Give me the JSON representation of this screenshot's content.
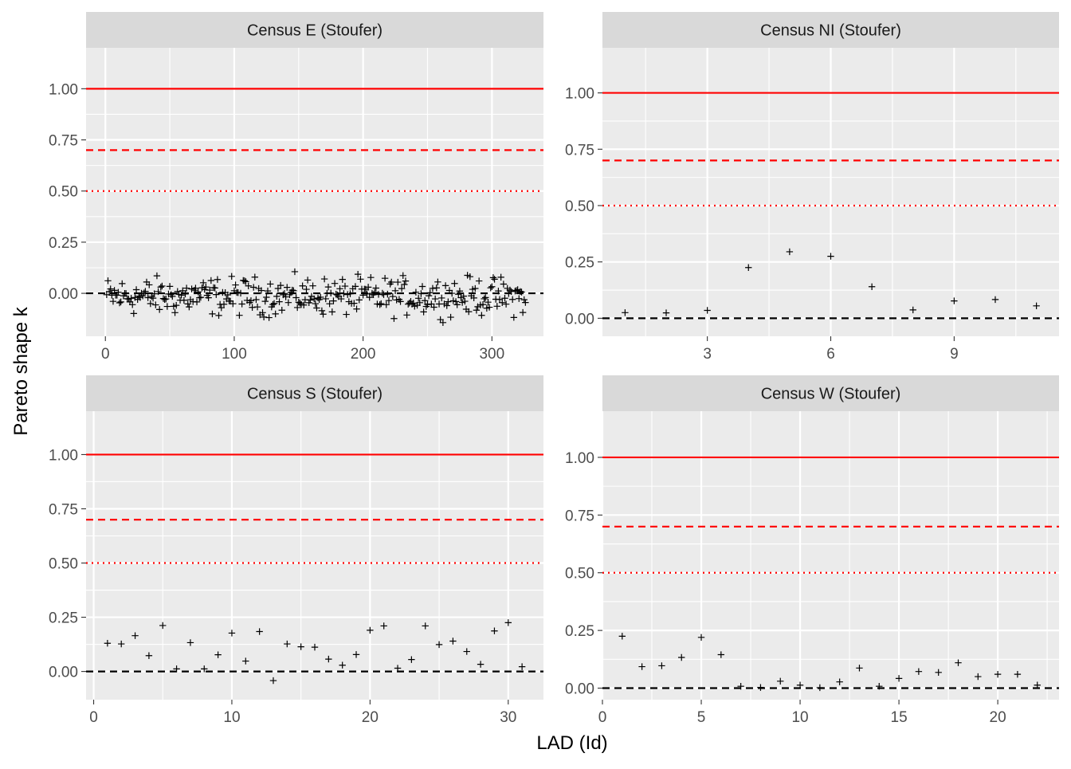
{
  "chart_data": {
    "type": "scatter",
    "xlabel": "LAD (Id)",
    "ylabel": "Pareto shape k",
    "marker": "+",
    "reference_lines": [
      {
        "y": 1.0,
        "color": "#ff0000",
        "style": "solid"
      },
      {
        "y": 0.7,
        "color": "#ff0000",
        "style": "dashed"
      },
      {
        "y": 0.5,
        "color": "#ff0000",
        "style": "dotted"
      },
      {
        "y": 0.0,
        "color": "#000000",
        "style": "dashed"
      }
    ],
    "colors": {
      "panel_background": "#ebebeb",
      "strip_background": "#d9d9d9",
      "grid": "#ffffff",
      "points": "#000000"
    },
    "panels": [
      {
        "title": "Census E (Stoufer)",
        "xlim": [
          -15,
          340
        ],
        "ylim": [
          -0.21,
          1.2
        ],
        "xticks": [
          0,
          100,
          200,
          300
        ],
        "yticks": [
          0.0,
          0.25,
          0.5,
          0.75,
          1.0
        ],
        "ytick_labels": [
          "0.00",
          "0.25",
          "0.50",
          "0.75",
          "1.00"
        ],
        "n_points": 326,
        "points_note": "random"
      },
      {
        "title": "Census NI (Stoufer)",
        "xlim": [
          0.45,
          11.55
        ],
        "ylim": [
          -0.08,
          1.2
        ],
        "xticks": [
          3,
          6,
          9
        ],
        "yticks": [
          0.0,
          0.25,
          0.5,
          0.75,
          1.0
        ],
        "ytick_labels": [
          "0.00",
          "0.25",
          "0.50",
          "0.75",
          "1.00"
        ],
        "x": [
          1,
          2,
          3,
          4,
          5,
          6,
          7,
          8,
          9,
          10,
          11
        ],
        "y": [
          0.025,
          0.024,
          0.035,
          0.225,
          0.295,
          0.275,
          0.14,
          0.037,
          0.077,
          0.083,
          0.055
        ]
      },
      {
        "title": "Census S (Stoufer)",
        "xlim": [
          -0.55,
          32.55
        ],
        "ylim": [
          -0.13,
          1.2
        ],
        "xticks": [
          0,
          10,
          20,
          30
        ],
        "yticks": [
          0.0,
          0.25,
          0.5,
          0.75,
          1.0
        ],
        "ytick_labels": [
          "0.00",
          "0.25",
          "0.50",
          "0.75",
          "1.00"
        ],
        "x": [
          1,
          2,
          3,
          4,
          5,
          6,
          7,
          8,
          9,
          10,
          11,
          12,
          13,
          14,
          15,
          16,
          17,
          18,
          19,
          20,
          21,
          22,
          23,
          24,
          25,
          26,
          27,
          28,
          29,
          30,
          31
        ],
        "y": [
          0.13,
          0.127,
          0.165,
          0.073,
          0.212,
          0.012,
          0.133,
          0.012,
          0.077,
          0.177,
          0.048,
          0.184,
          -0.042,
          0.127,
          0.114,
          0.112,
          0.057,
          0.029,
          0.078,
          0.19,
          0.21,
          0.015,
          0.055,
          0.21,
          0.124,
          0.14,
          0.092,
          0.033,
          0.187,
          0.225,
          0.022
        ]
      },
      {
        "title": "Census W (Stoufer)",
        "xlim": [
          0,
          23.1
        ],
        "ylim": [
          -0.05,
          1.2
        ],
        "xticks": [
          0,
          5,
          10,
          15,
          20
        ],
        "yticks": [
          0.0,
          0.25,
          0.5,
          0.75,
          1.0
        ],
        "ytick_labels": [
          "0.00",
          "0.25",
          "0.50",
          "0.75",
          "1.00"
        ],
        "x": [
          1,
          2,
          3,
          4,
          5,
          6,
          7,
          8,
          9,
          10,
          11,
          12,
          13,
          14,
          15,
          16,
          17,
          18,
          19,
          20,
          21,
          22
        ],
        "y": [
          0.225,
          0.093,
          0.097,
          0.133,
          0.22,
          0.145,
          0.008,
          0.003,
          0.03,
          0.013,
          0.002,
          0.027,
          0.087,
          0.008,
          0.042,
          0.072,
          0.068,
          0.11,
          0.05,
          0.06,
          0.06,
          0.013
        ]
      }
    ]
  }
}
